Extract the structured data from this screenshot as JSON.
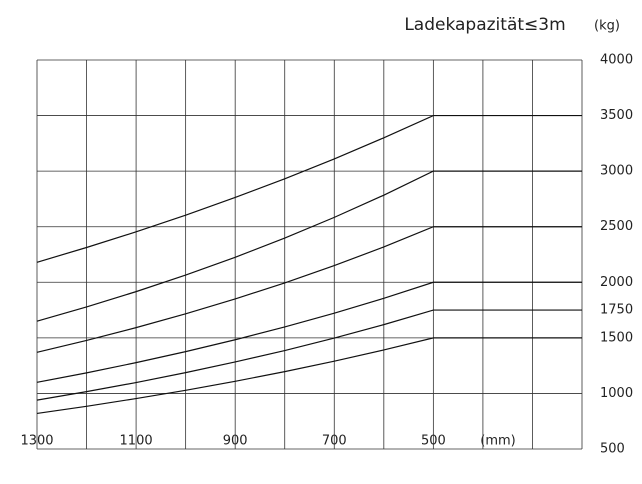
{
  "chart_data": {
    "type": "line",
    "title": "Ladekapazität≤3m",
    "y_unit": "(kg)",
    "x_unit": "(mm)",
    "x": [
      1300,
      1200,
      1100,
      1000,
      900,
      800,
      700,
      600,
      500,
      200
    ],
    "series": [
      {
        "color": "#111111",
        "values": [
          2180,
          2313,
          2454,
          2604,
          2763,
          2931,
          3110,
          3300,
          3500,
          3500
        ]
      },
      {
        "color": "#111111",
        "values": [
          1650,
          1778,
          1916,
          2065,
          2225,
          2398,
          2584,
          2784,
          3000,
          3000
        ]
      },
      {
        "color": "#111111",
        "values": [
          1370,
          1477,
          1592,
          1716,
          1850,
          1994,
          2150,
          2318,
          2500,
          2500
        ]
      },
      {
        "color": "#111111",
        "values": [
          1100,
          1185,
          1277,
          1376,
          1483,
          1598,
          1722,
          1856,
          2000,
          2000
        ]
      },
      {
        "color": "#111111",
        "values": [
          940,
          1016,
          1098,
          1187,
          1283,
          1386,
          1498,
          1619,
          1750,
          1750
        ]
      },
      {
        "color": "#111111",
        "values": [
          820,
          884,
          954,
          1028,
          1109,
          1196,
          1290,
          1391,
          1500,
          1500
        ]
      }
    ],
    "xlim": [
      1300,
      200
    ],
    "xticks": [
      1300,
      1100,
      900,
      700,
      500
    ],
    "xgrid": [
      1300,
      1200,
      1100,
      1000,
      900,
      800,
      700,
      600,
      500,
      400,
      300,
      200
    ],
    "ylim": [
      500,
      4000
    ],
    "yticks": [
      500,
      1000,
      1500,
      1750,
      2000,
      2500,
      3000,
      3500,
      4000
    ],
    "ygrid": [
      500,
      1000,
      1500,
      2000,
      2500,
      3000,
      3500,
      4000
    ],
    "grid": true
  }
}
